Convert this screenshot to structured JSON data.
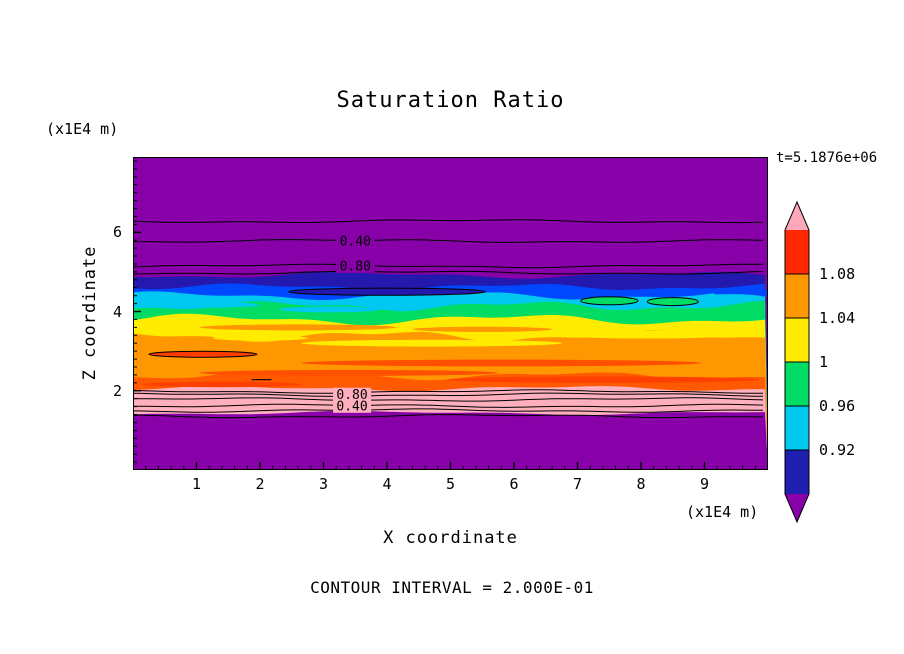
{
  "chart_data": {
    "type": "filled_contour",
    "title": "Saturation Ratio",
    "xlabel": "X coordinate",
    "ylabel": "Z coordinate",
    "x_axis_unit": "(x1E4 m)",
    "z_axis_unit": "(x1E4 m)",
    "time_annotation": "t=5.1876e+06",
    "contour_note": "CONTOUR INTERVAL = 2.000E-01",
    "xlim": [
      0,
      10
    ],
    "zlim": [
      0,
      7.9
    ],
    "x_tick_values": [
      1,
      2,
      3,
      4,
      5,
      6,
      7,
      8,
      9
    ],
    "z_tick_values": [
      2,
      4,
      6
    ],
    "minor_tick_step": 0.2,
    "field_background": "#8800A8",
    "bands": [
      {
        "z_top": 7.9,
        "color": "#8800A8",
        "wave": [
          0,
          300,
          0
        ]
      },
      {
        "z_top": 4.92,
        "color": "#2419AE",
        "wave": [
          2.5,
          330,
          0.5
        ]
      },
      {
        "z_top": 4.62,
        "color": "#0048FF",
        "wave": [
          2.5,
          270,
          2.1
        ]
      },
      {
        "z_top": 4.4,
        "color": "#00C8F0",
        "wave": [
          3.0,
          290,
          4.0
        ]
      },
      {
        "z_top": 4.14,
        "color": "#00DC64",
        "wave": [
          3.5,
          250,
          1.2
        ]
      },
      {
        "z_top": 3.8,
        "color": "#FFEC00",
        "wave": [
          4.0,
          310,
          3.3
        ]
      },
      {
        "z_top": 3.38,
        "color": "#FF9800",
        "wave": [
          4.0,
          270,
          5.2
        ]
      },
      {
        "z_top": 2.38,
        "color": "#FF5A00",
        "wave": [
          3.0,
          300,
          1.8
        ]
      },
      {
        "z_top": 2.06,
        "color": "#FFB0BE",
        "wave": [
          2.0,
          330,
          2.8
        ]
      },
      {
        "z_top": 1.44,
        "color": "#8800A8",
        "wave": [
          1.5,
          400,
          0.9
        ]
      }
    ],
    "streaks": [
      {
        "x": 1.0,
        "z": 4.78,
        "w": 1.8,
        "h": 0.16,
        "color": "#2419AE"
      },
      {
        "x": 4.0,
        "z": 4.5,
        "w": 3.1,
        "h": 0.18,
        "color": "#2419AE",
        "outline": true
      },
      {
        "x": 9.6,
        "z": 4.47,
        "w": 0.9,
        "h": 0.26,
        "color": "#0048FF"
      },
      {
        "x": 7.5,
        "z": 4.27,
        "w": 0.9,
        "h": 0.2,
        "color": "#00DC64",
        "outline": true
      },
      {
        "x": 8.5,
        "z": 4.25,
        "w": 0.8,
        "h": 0.2,
        "color": "#00DC64",
        "outline": true
      },
      {
        "x": 9.4,
        "z": 4.35,
        "w": 1.1,
        "h": 0.18,
        "color": "#00C8F0"
      },
      {
        "x": 1.0,
        "z": 4.17,
        "w": 2.0,
        "h": 0.15,
        "color": "#00C8F0"
      },
      {
        "x": 3.1,
        "z": 4.05,
        "w": 1.6,
        "h": 0.14,
        "color": "#00C8F0"
      },
      {
        "x": 2.6,
        "z": 3.6,
        "w": 3.1,
        "h": 0.15,
        "color": "#FF9800"
      },
      {
        "x": 5.5,
        "z": 3.55,
        "w": 2.2,
        "h": 0.13,
        "color": "#FF9800"
      },
      {
        "x": 2.0,
        "z": 3.33,
        "w": 1.5,
        "h": 0.13,
        "color": "#FFEC00"
      },
      {
        "x": 4.7,
        "z": 3.2,
        "w": 4.1,
        "h": 0.17,
        "color": "#FFEC00"
      },
      {
        "x": 8.1,
        "z": 3.42,
        "w": 2.8,
        "h": 0.2,
        "color": "#FFEC00"
      },
      {
        "x": 4.9,
        "z": 2.95,
        "w": 2.4,
        "h": 0.12,
        "color": "#FF9800"
      },
      {
        "x": 1.1,
        "z": 2.92,
        "w": 1.7,
        "h": 0.15,
        "color": "#FF3C00",
        "outline": true
      },
      {
        "x": 5.8,
        "z": 2.7,
        "w": 6.3,
        "h": 0.17,
        "color": "#FF5000"
      },
      {
        "x": 3.4,
        "z": 2.45,
        "w": 4.7,
        "h": 0.15,
        "color": "#FF5000"
      },
      {
        "x": 7.6,
        "z": 2.52,
        "w": 3.1,
        "h": 0.12,
        "color": "#FF9800"
      },
      {
        "x": 7.4,
        "z": 2.28,
        "w": 4.9,
        "h": 0.16,
        "color": "#FF4000"
      },
      {
        "x": 1.4,
        "z": 2.16,
        "w": 2.5,
        "h": 0.14,
        "color": "#FF4000"
      }
    ],
    "contour_lines": [
      {
        "z": 6.28
      },
      {
        "z": 5.78,
        "label": "0.40",
        "label_x": 3.5,
        "label_bg": "#8800A8"
      },
      {
        "z": 5.15,
        "label": "0.80",
        "label_x": 3.5,
        "label_bg": "#8800A8"
      },
      {
        "z": 4.98
      },
      {
        "z": 1.98
      },
      {
        "z": 1.9,
        "label": "0.80",
        "label_x": 3.45,
        "label_bg": "#FFB0BE"
      },
      {
        "z": 1.78
      },
      {
        "z": 1.62,
        "label": "0.40",
        "label_x": 3.45,
        "label_bg": "#FFB0BE"
      },
      {
        "z": 1.5
      },
      {
        "z": 1.36
      }
    ],
    "contour_segments": [
      {
        "x1": 1.87,
        "x2": 2.18,
        "z": 2.28
      }
    ],
    "colorbar": {
      "over_color": "#FFA8B8",
      "under_color": "#8800A8",
      "segment_colors": [
        "#FF2800",
        "#FF9800",
        "#FFEC00",
        "#00DC64",
        "#00C8F0",
        "#2020B0"
      ],
      "boundary_labels": [
        "1.08",
        "1.04",
        "1",
        "0.96",
        "0.92"
      ]
    }
  }
}
